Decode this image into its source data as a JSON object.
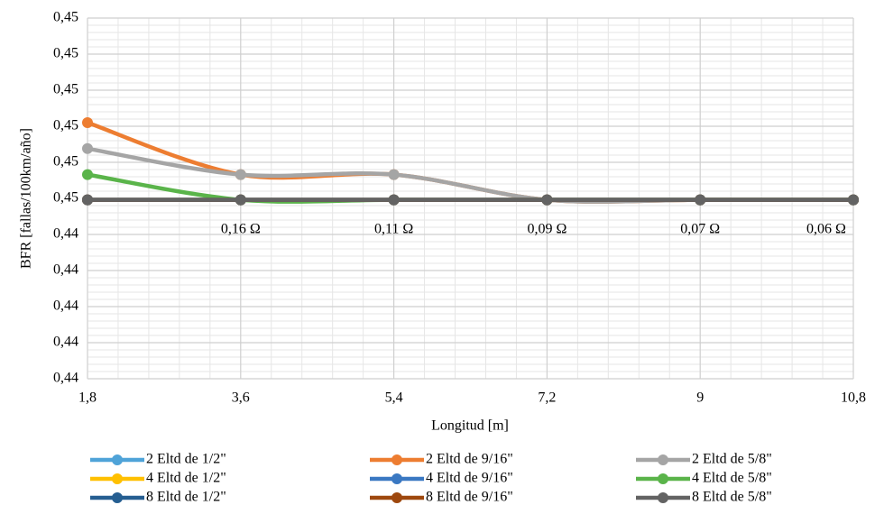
{
  "chart_data": {
    "type": "line",
    "y_label": "BFR [fallas/100km/año]",
    "x_label": "Longitud [m]",
    "categories": [
      "1,8",
      "3,6",
      "5,4",
      "7,2",
      "9",
      "10,8"
    ],
    "point_labels": [
      null,
      "0,16 Ω",
      "0,11 Ω",
      "0,09 Ω",
      "0,07 Ω",
      "0,06 Ω"
    ],
    "ylim": [
      0.4426,
      0.4476
    ],
    "yticks": [
      {
        "value": 0.4426,
        "label": "0,44"
      },
      {
        "value": 0.4431,
        "label": "0,44"
      },
      {
        "value": 0.4436,
        "label": "0,44"
      },
      {
        "value": 0.4441,
        "label": "0,44"
      },
      {
        "value": 0.4446,
        "label": "0,44"
      },
      {
        "value": 0.4451,
        "label": "0,45"
      },
      {
        "value": 0.4456,
        "label": "0,45"
      },
      {
        "value": 0.4461,
        "label": "0,45"
      },
      {
        "value": 0.4466,
        "label": "0,45"
      },
      {
        "value": 0.4471,
        "label": "0,45"
      },
      {
        "value": 0.4476,
        "label": "0,45"
      }
    ],
    "grid": true,
    "series": [
      {
        "name": "2 Eltd de 1/2\"",
        "color": "#4fa3d8",
        "values": [
          0.44508,
          0.44508,
          0.44508,
          0.44508,
          0.44508,
          0.44508
        ]
      },
      {
        "name": "2 Eltd de 9/16\"",
        "color": "#ed7d31",
        "values": [
          0.44615,
          0.44543,
          0.44543,
          0.44508,
          0.44508,
          0.44508
        ]
      },
      {
        "name": "2 Eltd de 5/8\"",
        "color": "#a5a5a5",
        "values": [
          0.44579,
          0.44543,
          0.44543,
          0.44508,
          0.44508,
          0.44508
        ]
      },
      {
        "name": "4 Eltd de 1/2\"",
        "color": "#ffc000",
        "values": [
          0.44508,
          0.44508,
          0.44508,
          0.44508,
          0.44508,
          0.44508
        ]
      },
      {
        "name": "4 Eltd de 9/16\"",
        "color": "#3a78c2",
        "values": [
          0.44508,
          0.44508,
          0.44508,
          0.44508,
          0.44508,
          0.44508
        ]
      },
      {
        "name": "4 Eltd de 5/8\"",
        "color": "#5ab44a",
        "values": [
          0.44543,
          0.44508,
          0.44508,
          0.44508,
          0.44508,
          0.44508
        ]
      },
      {
        "name": "8 Eltd de 1/2\"",
        "color": "#255e91",
        "values": [
          0.44508,
          0.44508,
          0.44508,
          0.44508,
          0.44508,
          0.44508
        ]
      },
      {
        "name": "8 Eltd de 9/16\"",
        "color": "#9e480e",
        "values": [
          0.44508,
          0.44508,
          0.44508,
          0.44508,
          0.44508,
          0.44508
        ]
      },
      {
        "name": "8 Eltd de 5/8\"",
        "color": "#636363",
        "values": [
          0.44508,
          0.44508,
          0.44508,
          0.44508,
          0.44508,
          0.44508
        ]
      }
    ]
  }
}
